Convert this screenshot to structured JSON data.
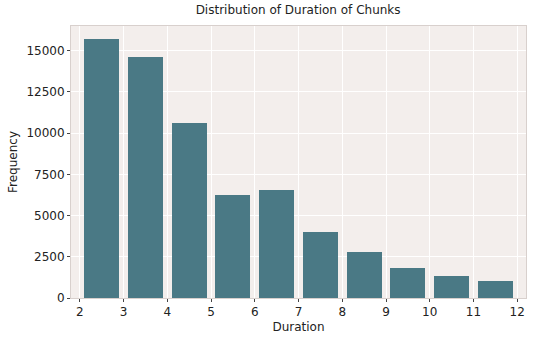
{
  "chart_data": {
    "type": "histogram",
    "title": "Distribution of Duration of Chunks",
    "xlabel": "Duration",
    "ylabel": "Frequency",
    "bins": [
      2,
      3,
      4,
      5,
      6,
      7,
      8,
      9,
      10,
      11,
      12
    ],
    "counts": [
      15700,
      14600,
      10600,
      6250,
      6550,
      4000,
      2800,
      1800,
      1350,
      1050
    ],
    "color": "#4a7985",
    "xlim": [
      1.8,
      12.2
    ],
    "xticks": [
      2,
      3,
      4,
      5,
      6,
      7,
      8,
      9,
      10,
      11,
      12
    ],
    "ylim": [
      0,
      16500
    ],
    "yticks": [
      0,
      2500,
      5000,
      7500,
      10000,
      12500,
      15000
    ],
    "grid": true
  }
}
